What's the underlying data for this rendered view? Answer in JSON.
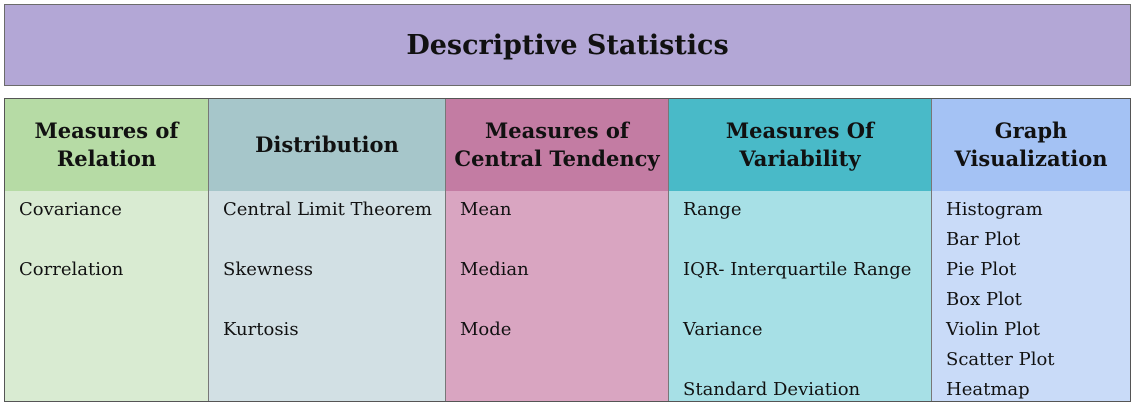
{
  "title": "Descriptive Statistics",
  "columns": [
    {
      "heading": "Measures of Relation",
      "head_color": "#b6dba5",
      "body_color": "#d9ebd2",
      "items": [
        "Covariance",
        "Correlation"
      ]
    },
    {
      "heading": "Distribution",
      "head_color": "#a6c6ca",
      "body_color": "#d2e0e4",
      "items": [
        "Central Limit Theorem",
        "Skewness",
        "Kurtosis"
      ]
    },
    {
      "heading": "Measures of Central Tendency",
      "head_color": "#c37ca3",
      "body_color": "#d9a5c1",
      "items": [
        "Mean",
        "Median",
        "Mode"
      ]
    },
    {
      "heading": "Measures Of Variability",
      "head_color": "#49bac8",
      "body_color": "#a7e0e6",
      "items": [
        "Range",
        "IQR- Interquartile Range",
        "Variance",
        "Standard Deviation"
      ]
    },
    {
      "heading": "Graph Visualization",
      "head_color": "#a4c2f4",
      "body_color": "#c9dbf8",
      "items": [
        "Histogram",
        "Bar Plot",
        "Pie Plot",
        "Box Plot",
        "Violin Plot",
        "Scatter Plot",
        "Heatmap"
      ]
    }
  ]
}
